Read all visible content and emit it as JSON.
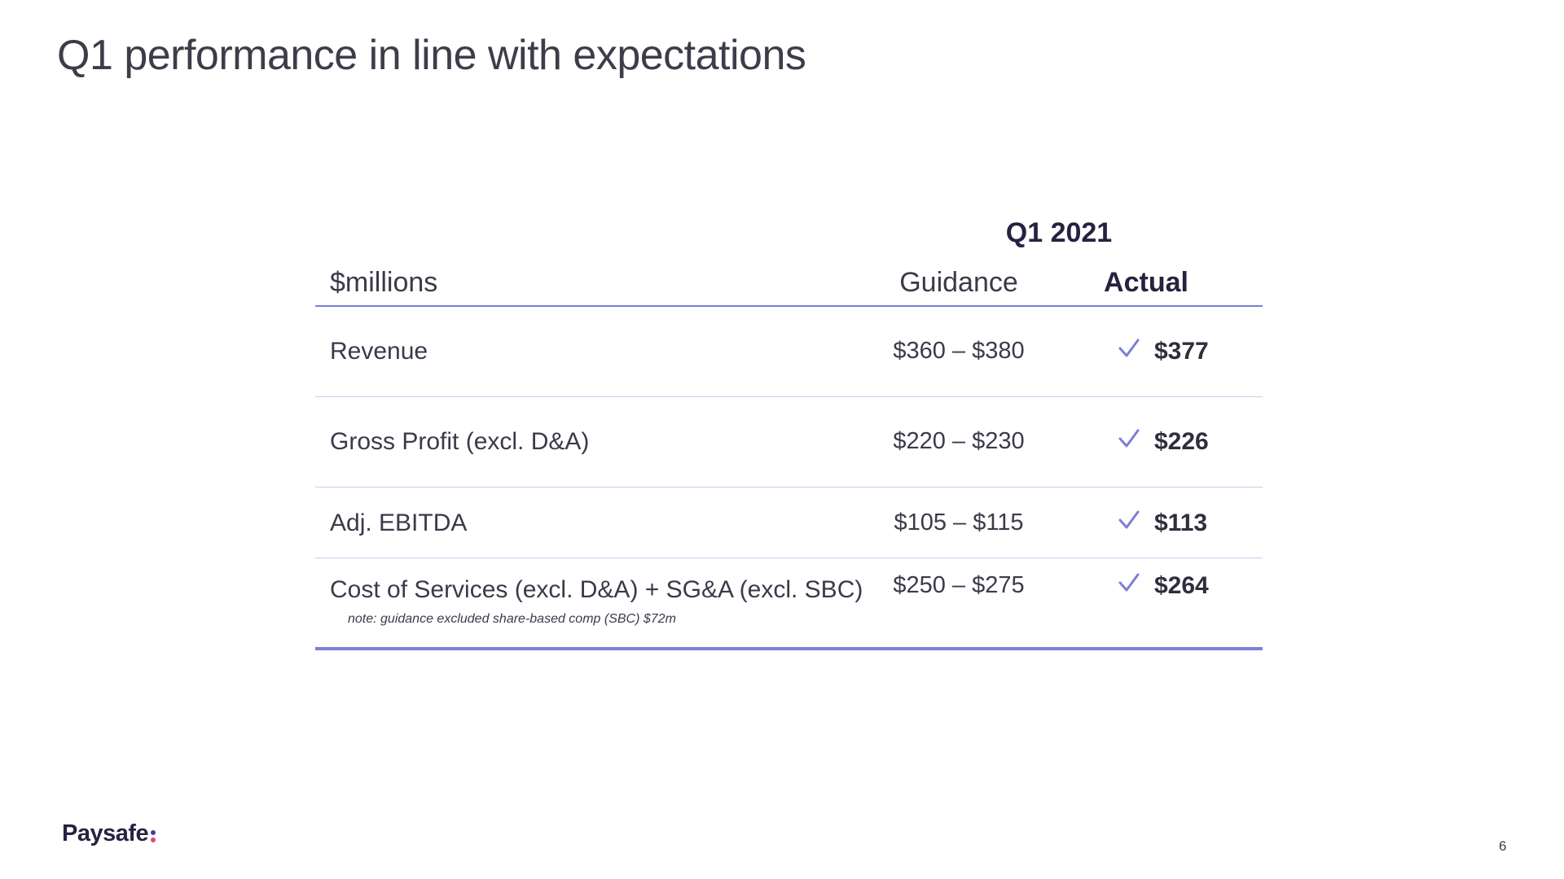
{
  "slide": {
    "title": "Q1 performance in line with expectations",
    "page_number": "6"
  },
  "table": {
    "period_label": "Q1 2021",
    "units_header": "$millions",
    "guidance_header": "Guidance",
    "actual_header": "Actual",
    "rows": [
      {
        "label": "Revenue",
        "guidance": "$360 – $380",
        "actual": "$377",
        "check_icon": "checkmark-icon"
      },
      {
        "label": "Gross Profit (excl. D&A)",
        "guidance": "$220 – $230",
        "actual": "$226",
        "check_icon": "checkmark-icon"
      },
      {
        "label": "Adj. EBITDA",
        "guidance": "$105 – $115",
        "actual": "$113",
        "check_icon": "checkmark-icon"
      },
      {
        "label": "Cost of Services (excl. D&A) + SG&A (excl. SBC)",
        "guidance": "$250 – $275",
        "actual": "$264",
        "check_icon": "checkmark-icon",
        "note": "note: guidance excluded share-based comp (SBC) $72m"
      }
    ]
  },
  "logo": {
    "text": "Paysafe"
  },
  "colors": {
    "accent": "#7b7fd6",
    "heading_dark": "#262240",
    "logo_colon_top": "#4a3aa8",
    "logo_colon_bottom": "#e0457b"
  }
}
